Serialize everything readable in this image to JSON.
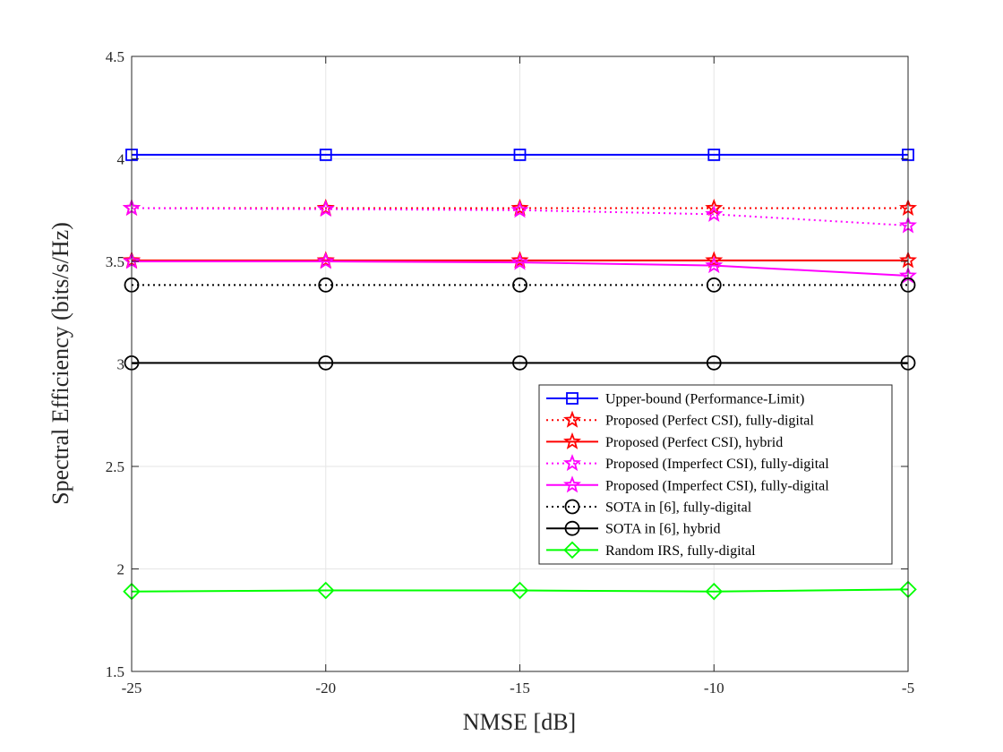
{
  "chart_data": {
    "type": "line",
    "title": "",
    "xlabel": "NMSE [dB]",
    "ylabel": "Spectral Efficiency (bits/s/Hz)",
    "x": [
      -25,
      -20,
      -15,
      -10,
      -5
    ],
    "xlim": [
      -25,
      -5
    ],
    "ylim": [
      1.5,
      4.5
    ],
    "xticks": [
      -25,
      -20,
      -15,
      -10,
      -5
    ],
    "xtick_labels": [
      "-25",
      "-20",
      "-15",
      "-10",
      "-5"
    ],
    "yticks": [
      1.5,
      2,
      2.5,
      3,
      3.5,
      4,
      4.5
    ],
    "ytick_labels": [
      "1.5",
      "2",
      "2.5",
      "3",
      "3.5",
      "4",
      "4.5"
    ],
    "grid": true,
    "legend_position": "lower-right",
    "series": [
      {
        "name": "Upper-bound (Performance-Limit)",
        "values": [
          4.02,
          4.02,
          4.02,
          4.02,
          4.02
        ],
        "color": "#0000ff",
        "line_style": "solid",
        "marker": "square"
      },
      {
        "name": "Proposed (Perfect CSI), fully-digital",
        "values": [
          3.76,
          3.76,
          3.76,
          3.76,
          3.76
        ],
        "color": "#ff0000",
        "line_style": "dotted",
        "marker": "star"
      },
      {
        "name": "Proposed (Perfect CSI), hybrid",
        "values": [
          3.505,
          3.505,
          3.505,
          3.505,
          3.505
        ],
        "color": "#ff0000",
        "line_style": "solid",
        "marker": "star"
      },
      {
        "name": "Proposed (Imperfect CSI), fully-digital",
        "values": [
          3.76,
          3.755,
          3.75,
          3.73,
          3.675
        ],
        "color": "#ff00ff",
        "line_style": "dotted",
        "marker": "star"
      },
      {
        "name": "Proposed (Imperfect CSI), fully-digital",
        "values": [
          3.5,
          3.5,
          3.495,
          3.48,
          3.43
        ],
        "color": "#ff00ff",
        "line_style": "solid",
        "marker": "star"
      },
      {
        "name": "SOTA in [6], fully-digital",
        "values": [
          3.385,
          3.385,
          3.385,
          3.385,
          3.385
        ],
        "color": "#000000",
        "line_style": "dotted",
        "marker": "circle"
      },
      {
        "name": "SOTA in [6], hybrid",
        "values": [
          3.005,
          3.005,
          3.005,
          3.005,
          3.005
        ],
        "color": "#000000",
        "line_style": "solid",
        "marker": "circle"
      },
      {
        "name": "Random IRS, fully-digital",
        "values": [
          1.89,
          1.895,
          1.895,
          1.89,
          1.9
        ],
        "color": "#00ff00",
        "line_style": "solid",
        "marker": "diamond"
      }
    ]
  }
}
